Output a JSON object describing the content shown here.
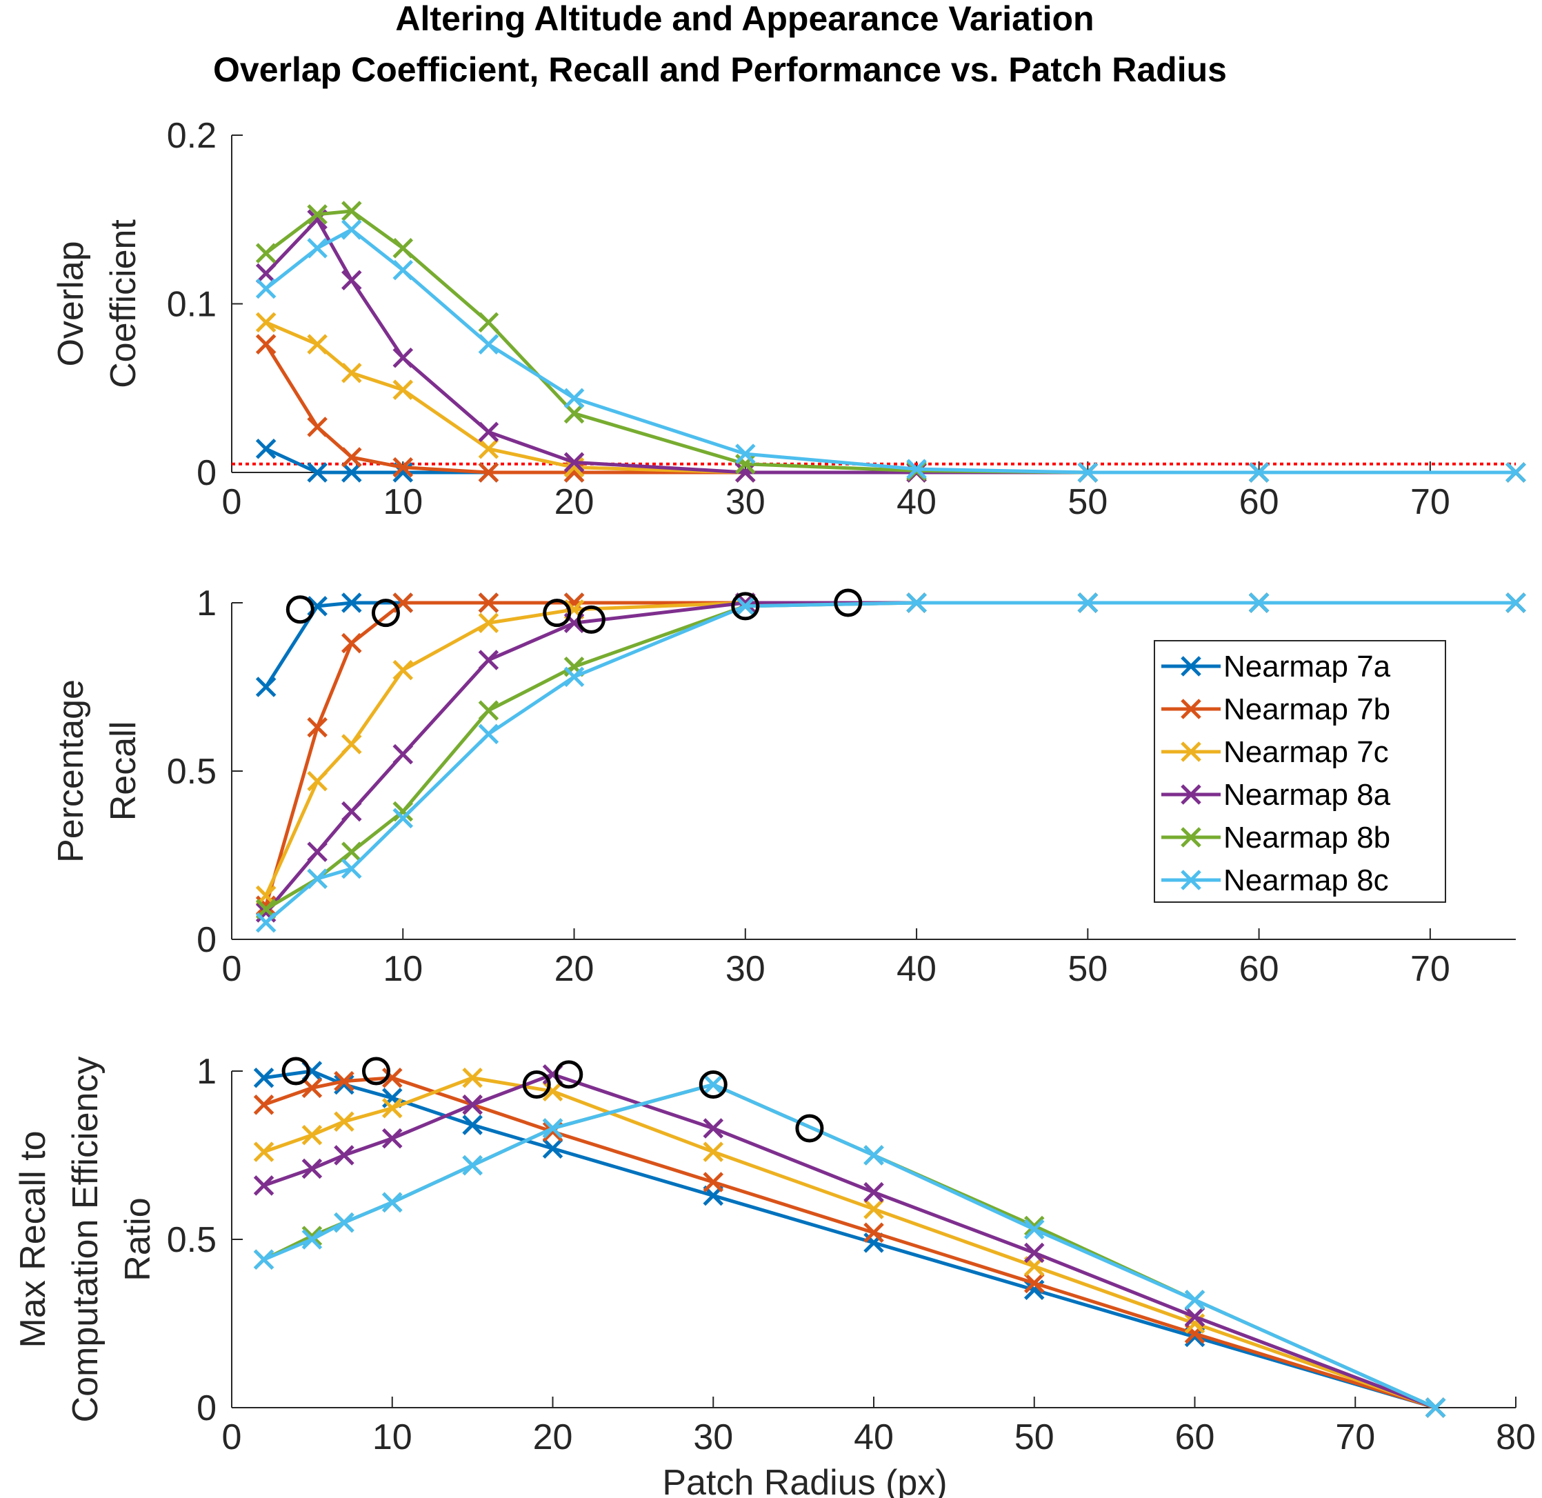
{
  "figure": {
    "title_line1": "Altering Altitude and Appearance Variation",
    "title_line2": "Overlap Coefficient, Recall and Performance vs. Patch Radius"
  },
  "colors": {
    "Nearmap 7a": "#0072BD",
    "Nearmap 7b": "#D95319",
    "Nearmap 7c": "#EDB120",
    "Nearmap 8a": "#7E2F8E",
    "Nearmap 8b": "#77AC30",
    "Nearmap 8c": "#4DBEEE",
    "threshold": "#FF0000",
    "optimum_marker": "#000000"
  },
  "chart_data": [
    {
      "type": "line",
      "name": "overlap",
      "title": "",
      "xlabel": "",
      "ylabel_lines": [
        "Overlap",
        "Coefficient"
      ],
      "xlim": [
        0,
        75
      ],
      "ylim": [
        0,
        0.2
      ],
      "xticks": [
        0,
        10,
        20,
        30,
        40,
        50,
        60,
        70
      ],
      "yticks": [
        0,
        0.1,
        0.2
      ],
      "ytick_labels": [
        "0",
        "0.1",
        "0.2"
      ],
      "x": [
        2,
        5,
        7,
        10,
        15,
        20,
        30,
        40,
        50,
        60,
        75
      ],
      "threshold": 0.005,
      "series": [
        {
          "name": "Nearmap 7a",
          "values": [
            0.014,
            0,
            0,
            0,
            0,
            0,
            0,
            0,
            0,
            0,
            0
          ]
        },
        {
          "name": "Nearmap 7b",
          "values": [
            0.076,
            0.027,
            0.009,
            0.003,
            0,
            0,
            0,
            0,
            0,
            0,
            0
          ]
        },
        {
          "name": "Nearmap 7c",
          "values": [
            0.089,
            0.076,
            0.059,
            0.049,
            0.014,
            0.003,
            0,
            0,
            0,
            0,
            0
          ]
        },
        {
          "name": "Nearmap 8a",
          "values": [
            0.118,
            0.15,
            0.114,
            0.068,
            0.024,
            0.006,
            0,
            0,
            0,
            0,
            0
          ]
        },
        {
          "name": "Nearmap 8b",
          "values": [
            0.13,
            0.153,
            0.155,
            0.133,
            0.089,
            0.035,
            0.005,
            0.001,
            0,
            0,
            0
          ]
        },
        {
          "name": "Nearmap 8c",
          "values": [
            0.109,
            0.133,
            0.144,
            0.12,
            0.076,
            0.044,
            0.011,
            0.002,
            0,
            0,
            0
          ]
        }
      ]
    },
    {
      "type": "line",
      "name": "recall",
      "title": "",
      "xlabel": "",
      "ylabel_lines": [
        "Percentage",
        "Recall"
      ],
      "xlim": [
        0,
        75
      ],
      "ylim": [
        0,
        1
      ],
      "xticks": [
        0,
        10,
        20,
        30,
        40,
        50,
        60,
        70
      ],
      "yticks": [
        0,
        0.5,
        1
      ],
      "ytick_labels": [
        "0",
        "0.5",
        "1"
      ],
      "x": [
        2,
        5,
        7,
        10,
        15,
        20,
        30,
        40,
        50,
        60,
        75
      ],
      "legend": {
        "location": "right",
        "entries": [
          "Nearmap 7a",
          "Nearmap 7b",
          "Nearmap 7c",
          "Nearmap 8a",
          "Nearmap 8b",
          "Nearmap 8c"
        ]
      },
      "series": [
        {
          "name": "Nearmap 7a",
          "values": [
            0.75,
            0.99,
            1,
            1,
            1,
            1,
            1,
            1,
            1,
            1,
            1
          ]
        },
        {
          "name": "Nearmap 7b",
          "values": [
            0.1,
            0.63,
            0.88,
            1,
            1,
            1,
            1,
            1,
            1,
            1,
            1
          ]
        },
        {
          "name": "Nearmap 7c",
          "values": [
            0.13,
            0.47,
            0.58,
            0.8,
            0.94,
            0.98,
            1,
            1,
            1,
            1,
            1
          ]
        },
        {
          "name": "Nearmap 8a",
          "values": [
            0.08,
            0.26,
            0.38,
            0.55,
            0.83,
            0.94,
            1,
            1,
            1,
            1,
            1
          ]
        },
        {
          "name": "Nearmap 8b",
          "values": [
            0.09,
            0.18,
            0.26,
            0.38,
            0.68,
            0.81,
            0.99,
            1,
            1,
            1,
            1
          ]
        },
        {
          "name": "Nearmap 8c",
          "values": [
            0.05,
            0.18,
            0.21,
            0.36,
            0.61,
            0.78,
            0.99,
            1,
            1,
            1,
            1
          ]
        }
      ],
      "optimum_markers": [
        {
          "x": 4,
          "y": 0.98
        },
        {
          "x": 9,
          "y": 0.97
        },
        {
          "x": 19,
          "y": 0.97
        },
        {
          "x": 21,
          "y": 0.95
        },
        {
          "x": 30,
          "y": 0.99
        },
        {
          "x": 36,
          "y": 1
        }
      ]
    },
    {
      "type": "line",
      "name": "efficiency",
      "title": "",
      "xlabel": "Patch Radius (px)",
      "ylabel_lines": [
        "Max Recall to",
        "Computation Efficiency",
        "Ratio"
      ],
      "xlim": [
        0,
        80
      ],
      "ylim": [
        0,
        1
      ],
      "xticks": [
        0,
        10,
        20,
        30,
        40,
        50,
        60,
        70,
        80
      ],
      "yticks": [
        0,
        0.5,
        1
      ],
      "ytick_labels": [
        "0",
        "0.5",
        "1"
      ],
      "x": [
        2,
        5,
        7,
        10,
        15,
        20,
        30,
        40,
        50,
        60,
        75
      ],
      "series": [
        {
          "name": "Nearmap 7a",
          "values": [
            0.98,
            1,
            0.96,
            0.92,
            0.84,
            0.77,
            0.63,
            0.49,
            0.35,
            0.21,
            0
          ]
        },
        {
          "name": "Nearmap 7b",
          "values": [
            0.9,
            0.95,
            0.97,
            0.98,
            0.9,
            0.82,
            0.67,
            0.52,
            0.37,
            0.22,
            0
          ]
        },
        {
          "name": "Nearmap 7c",
          "values": [
            0.76,
            0.81,
            0.85,
            0.89,
            0.98,
            0.94,
            0.76,
            0.59,
            0.42,
            0.25,
            0
          ]
        },
        {
          "name": "Nearmap 8a",
          "values": [
            0.66,
            0.71,
            0.75,
            0.8,
            0.9,
            0.99,
            0.83,
            0.64,
            0.46,
            0.27,
            0
          ]
        },
        {
          "name": "Nearmap 8b",
          "values": [
            0.44,
            0.51,
            0.55,
            0.61,
            0.72,
            0.83,
            0.96,
            0.75,
            0.54,
            0.32,
            0
          ]
        },
        {
          "name": "Nearmap 8c",
          "values": [
            0.44,
            0.5,
            0.55,
            0.61,
            0.72,
            0.83,
            0.96,
            0.75,
            0.53,
            0.32,
            0
          ]
        }
      ],
      "optimum_markers": [
        {
          "x": 4,
          "y": 1
        },
        {
          "x": 9,
          "y": 1
        },
        {
          "x": 19,
          "y": 0.96
        },
        {
          "x": 21,
          "y": 0.99
        },
        {
          "x": 30,
          "y": 0.96
        },
        {
          "x": 36,
          "y": 0.83
        }
      ]
    }
  ]
}
